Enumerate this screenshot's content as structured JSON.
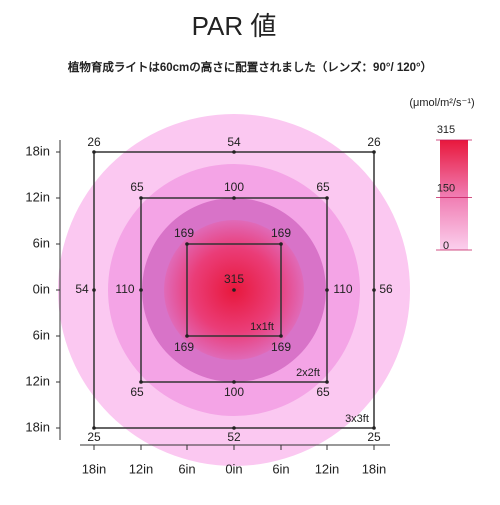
{
  "title": "PAR 値",
  "subtitle": "植物育成ライトは60cmの高さに配置されました（レンズ：90°/ 120°）",
  "unit": "(μmol/m²/s⁻¹)",
  "colorbar": {
    "ticks": [
      315,
      150,
      0
    ]
  },
  "y_ticks": [
    "18in",
    "12in",
    "6in",
    "0in",
    "6in",
    "12in",
    "18in"
  ],
  "x_ticks": [
    "18in",
    "12in",
    "6in",
    "0in",
    "6in",
    "12in",
    "18in"
  ],
  "squares": [
    {
      "label": "3x3ft",
      "values": [
        26,
        54,
        26,
        54,
        56,
        25,
        52,
        25
      ]
    },
    {
      "label": "2x2ft",
      "values": [
        65,
        100,
        65,
        110,
        110,
        65,
        100,
        65
      ]
    },
    {
      "label": "1x1ft",
      "values": [
        169,
        169,
        169,
        169
      ],
      "center": 315
    }
  ]
}
